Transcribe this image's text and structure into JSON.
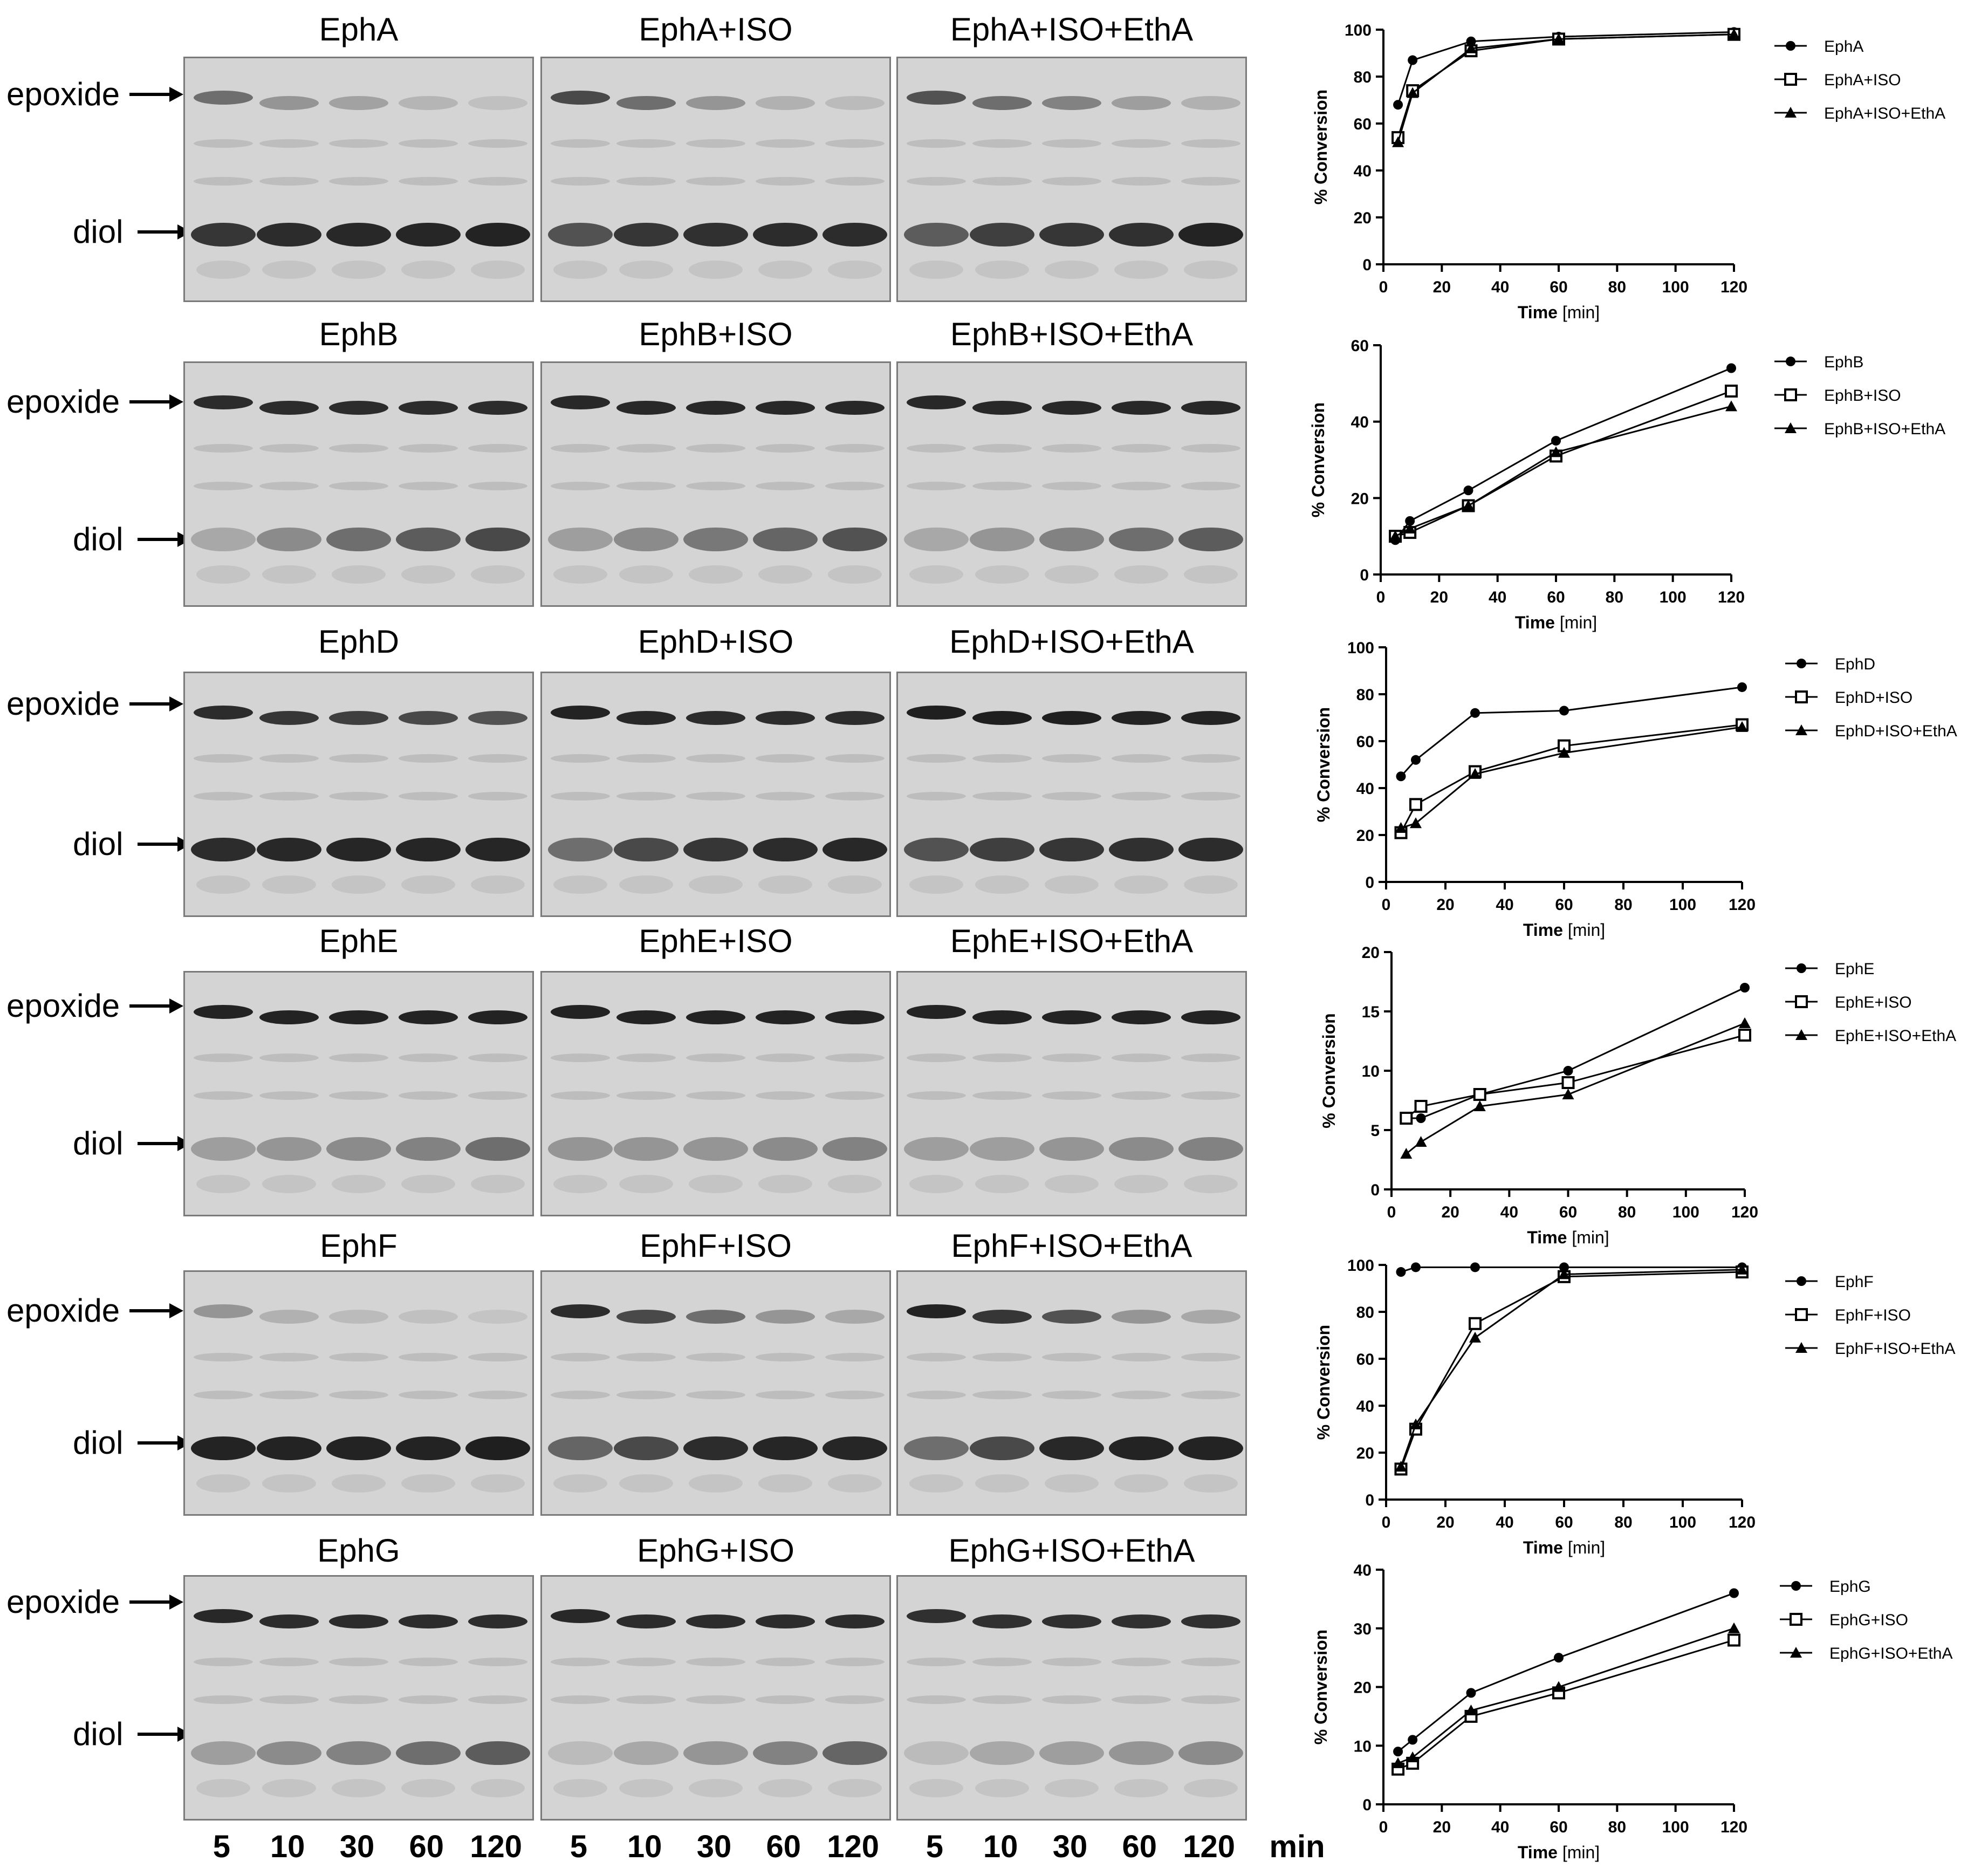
{
  "labels": {
    "epoxide": "epoxide",
    "diol": "diol",
    "time_unit": "min"
  },
  "time_points": [
    "5",
    "10",
    "30",
    "60",
    "120"
  ],
  "colors": {
    "gel_bg": "#d4d4d4",
    "band_dark": "#1c1c1c",
    "band_faint": "#bdbdbd"
  },
  "gel_rows": [
    {
      "enzyme": "EphA",
      "titles": [
        "EphA",
        "EphA+ISO",
        "EphA+ISO+EthA"
      ],
      "epoxide_intensity": [
        [
          0.55,
          0.35,
          0.28,
          0.18,
          0.12
        ],
        [
          0.75,
          0.55,
          0.35,
          0.2,
          0.15
        ],
        [
          0.7,
          0.55,
          0.45,
          0.3,
          0.2
        ]
      ],
      "diol_intensity": [
        [
          0.85,
          0.9,
          0.92,
          0.93,
          0.95
        ],
        [
          0.7,
          0.85,
          0.88,
          0.9,
          0.9
        ],
        [
          0.65,
          0.8,
          0.85,
          0.88,
          0.95
        ]
      ]
    },
    {
      "enzyme": "EphB",
      "titles": [
        "EphB",
        "EphB+ISO",
        "EphB+ISO+EthA"
      ],
      "epoxide_intensity": [
        [
          0.9,
          0.9,
          0.9,
          0.9,
          0.9
        ],
        [
          0.92,
          0.92,
          0.92,
          0.92,
          0.92
        ],
        [
          0.92,
          0.92,
          0.92,
          0.92,
          0.92
        ]
      ],
      "diol_intensity": [
        [
          0.25,
          0.4,
          0.55,
          0.65,
          0.75
        ],
        [
          0.3,
          0.4,
          0.5,
          0.6,
          0.7
        ],
        [
          0.25,
          0.35,
          0.45,
          0.55,
          0.65
        ]
      ]
    },
    {
      "enzyme": "EphD",
      "titles": [
        "EphD",
        "EphD+ISO",
        "EphD+ISO+EthA"
      ],
      "epoxide_intensity": [
        [
          0.9,
          0.85,
          0.8,
          0.75,
          0.7
        ],
        [
          0.95,
          0.92,
          0.9,
          0.9,
          0.9
        ],
        [
          0.97,
          0.97,
          0.97,
          0.95,
          0.95
        ]
      ],
      "diol_intensity": [
        [
          0.9,
          0.92,
          0.93,
          0.93,
          0.93
        ],
        [
          0.55,
          0.75,
          0.85,
          0.9,
          0.92
        ],
        [
          0.7,
          0.8,
          0.85,
          0.88,
          0.9
        ]
      ]
    },
    {
      "enzyme": "EphE",
      "titles": [
        "EphE",
        "EphE+ISO",
        "EphE+ISO+EthA"
      ],
      "epoxide_intensity": [
        [
          0.95,
          0.95,
          0.95,
          0.95,
          0.95
        ],
        [
          0.95,
          0.95,
          0.95,
          0.95,
          0.95
        ],
        [
          0.95,
          0.95,
          0.95,
          0.95,
          0.95
        ]
      ],
      "diol_intensity": [
        [
          0.3,
          0.35,
          0.4,
          0.45,
          0.55
        ],
        [
          0.35,
          0.35,
          0.35,
          0.4,
          0.45
        ],
        [
          0.3,
          0.3,
          0.35,
          0.4,
          0.45
        ]
      ]
    },
    {
      "enzyme": "EphF",
      "titles": [
        "EphF",
        "EphF+ISO",
        "EphF+ISO+EthA"
      ],
      "epoxide_intensity": [
        [
          0.35,
          0.2,
          0.15,
          0.12,
          0.1
        ],
        [
          0.9,
          0.75,
          0.55,
          0.35,
          0.25
        ],
        [
          0.95,
          0.85,
          0.7,
          0.35,
          0.25
        ]
      ],
      "diol_intensity": [
        [
          0.95,
          0.95,
          0.95,
          0.95,
          0.97
        ],
        [
          0.6,
          0.75,
          0.9,
          0.93,
          0.93
        ],
        [
          0.55,
          0.75,
          0.92,
          0.95,
          0.95
        ]
      ]
    },
    {
      "enzyme": "EphG",
      "titles": [
        "EphG",
        "EphG+ISO",
        "EphG+ISO+EthA"
      ],
      "epoxide_intensity": [
        [
          0.92,
          0.9,
          0.9,
          0.9,
          0.9
        ],
        [
          0.92,
          0.9,
          0.9,
          0.9,
          0.9
        ],
        [
          0.88,
          0.88,
          0.88,
          0.88,
          0.88
        ]
      ],
      "diol_intensity": [
        [
          0.3,
          0.4,
          0.45,
          0.55,
          0.65
        ],
        [
          0.15,
          0.25,
          0.35,
          0.45,
          0.6
        ],
        [
          0.15,
          0.25,
          0.3,
          0.35,
          0.4
        ]
      ]
    }
  ],
  "chart_data": [
    {
      "type": "line",
      "xlabel": "Time",
      "xlabel_unit": "[min]",
      "ylabel": "% Conversion",
      "xlim": [
        0,
        120
      ],
      "ylim": [
        0,
        100
      ],
      "xticks": [
        "0",
        "20",
        "40",
        "60",
        "80",
        "100",
        "120"
      ],
      "yticks": [
        "0",
        "20",
        "40",
        "60",
        "80",
        "100"
      ],
      "x": [
        5,
        10,
        30,
        60,
        120
      ],
      "series": [
        {
          "name": "EphA",
          "marker": "circle",
          "values": [
            68,
            87,
            95,
            97,
            99
          ]
        },
        {
          "name": "EphA+ISO",
          "marker": "square",
          "values": [
            54,
            74,
            91,
            96,
            98
          ]
        },
        {
          "name": "EphA+ISO+EthA",
          "marker": "triangle",
          "values": [
            52,
            73,
            92,
            96,
            98
          ]
        }
      ]
    },
    {
      "type": "line",
      "xlabel": "Time",
      "xlabel_unit": "[min]",
      "ylabel": "% Conversion",
      "xlim": [
        0,
        120
      ],
      "ylim": [
        0,
        60
      ],
      "xticks": [
        "0",
        "20",
        "40",
        "60",
        "80",
        "100",
        "120"
      ],
      "yticks": [
        "0",
        "20",
        "40",
        "60"
      ],
      "x": [
        5,
        10,
        30,
        60,
        120
      ],
      "series": [
        {
          "name": "EphB",
          "marker": "circle",
          "values": [
            9,
            14,
            22,
            35,
            54
          ]
        },
        {
          "name": "EphB+ISO",
          "marker": "square",
          "values": [
            10,
            11,
            18,
            31,
            48
          ]
        },
        {
          "name": "EphB+ISO+EthA",
          "marker": "triangle",
          "values": [
            10,
            12,
            18,
            32,
            44
          ]
        }
      ]
    },
    {
      "type": "line",
      "xlabel": "Time",
      "xlabel_unit": "[min]",
      "ylabel": "% Conversion",
      "xlim": [
        0,
        120
      ],
      "ylim": [
        0,
        100
      ],
      "xticks": [
        "0",
        "20",
        "40",
        "60",
        "80",
        "100",
        "120"
      ],
      "yticks": [
        "0",
        "20",
        "40",
        "60",
        "80",
        "100"
      ],
      "x": [
        5,
        10,
        30,
        60,
        120
      ],
      "series": [
        {
          "name": "EphD",
          "marker": "circle",
          "values": [
            45,
            52,
            72,
            73,
            83
          ]
        },
        {
          "name": "EphD+ISO",
          "marker": "square",
          "values": [
            21,
            33,
            47,
            58,
            67
          ]
        },
        {
          "name": "EphD+ISO+EthA",
          "marker": "triangle",
          "values": [
            23,
            25,
            46,
            55,
            66
          ]
        }
      ]
    },
    {
      "type": "line",
      "xlabel": "Time",
      "xlabel_unit": "[min]",
      "ylabel": "% Conversion",
      "xlim": [
        0,
        120
      ],
      "ylim": [
        0,
        20
      ],
      "xticks": [
        "0",
        "20",
        "40",
        "60",
        "80",
        "100",
        "120"
      ],
      "yticks": [
        "0",
        "5",
        "10",
        "15",
        "20"
      ],
      "x": [
        5,
        10,
        30,
        60,
        120
      ],
      "series": [
        {
          "name": "EphE",
          "marker": "circle",
          "values": [
            6,
            6,
            8,
            10,
            17
          ]
        },
        {
          "name": "EphE+ISO",
          "marker": "square",
          "values": [
            6,
            7,
            8,
            9,
            13
          ]
        },
        {
          "name": "EphE+ISO+EthA",
          "marker": "triangle",
          "values": [
            3,
            4,
            7,
            8,
            14
          ]
        }
      ]
    },
    {
      "type": "line",
      "xlabel": "Time",
      "xlabel_unit": "[min]",
      "ylabel": "% Conversion",
      "xlim": [
        0,
        120
      ],
      "ylim": [
        0,
        100
      ],
      "xticks": [
        "0",
        "20",
        "40",
        "60",
        "80",
        "100",
        "120"
      ],
      "yticks": [
        "0",
        "20",
        "40",
        "60",
        "80",
        "100"
      ],
      "x": [
        5,
        10,
        30,
        60,
        120
      ],
      "series": [
        {
          "name": "EphF",
          "marker": "circle",
          "values": [
            97,
            99,
            99,
            99,
            99
          ]
        },
        {
          "name": "EphF+ISO",
          "marker": "square",
          "values": [
            13,
            30,
            75,
            95,
            97
          ]
        },
        {
          "name": "EphF+ISO+EthA",
          "marker": "triangle",
          "values": [
            14,
            32,
            69,
            96,
            98
          ]
        }
      ]
    },
    {
      "type": "line",
      "xlabel": "Time",
      "xlabel_unit": "[min]",
      "ylabel": "% Conversion",
      "xlim": [
        0,
        120
      ],
      "ylim": [
        0,
        40
      ],
      "xticks": [
        "0",
        "20",
        "40",
        "60",
        "80",
        "100",
        "120"
      ],
      "yticks": [
        "0",
        "10",
        "20",
        "30",
        "40"
      ],
      "x": [
        5,
        10,
        30,
        60,
        120
      ],
      "series": [
        {
          "name": "EphG",
          "marker": "circle",
          "values": [
            9,
            11,
            19,
            25,
            36
          ]
        },
        {
          "name": "EphG+ISO",
          "marker": "square",
          "values": [
            6,
            7,
            15,
            19,
            28
          ]
        },
        {
          "name": "EphG+ISO+EthA",
          "marker": "triangle",
          "values": [
            7,
            8,
            16,
            20,
            30
          ]
        }
      ]
    }
  ]
}
